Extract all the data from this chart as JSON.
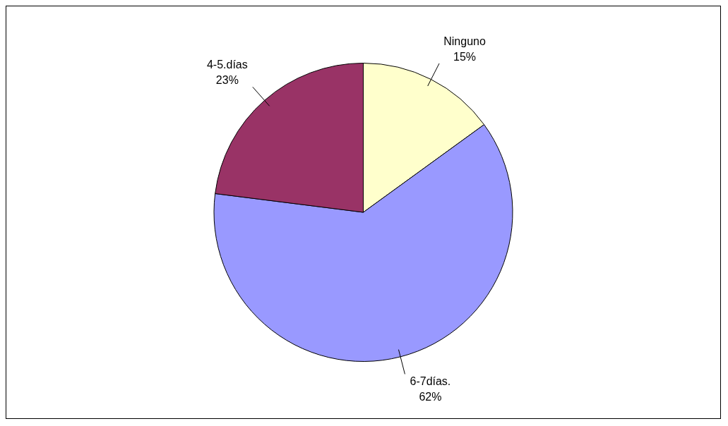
{
  "chart_data": {
    "type": "pie",
    "categories": [
      "Ninguno",
      "6-7días.",
      "4-5.días"
    ],
    "values": [
      15,
      62,
      23
    ],
    "value_labels": [
      "15%",
      "62%",
      "23%"
    ],
    "colors": [
      "#ffffcc",
      "#9999ff",
      "#993366"
    ],
    "legend": false
  }
}
